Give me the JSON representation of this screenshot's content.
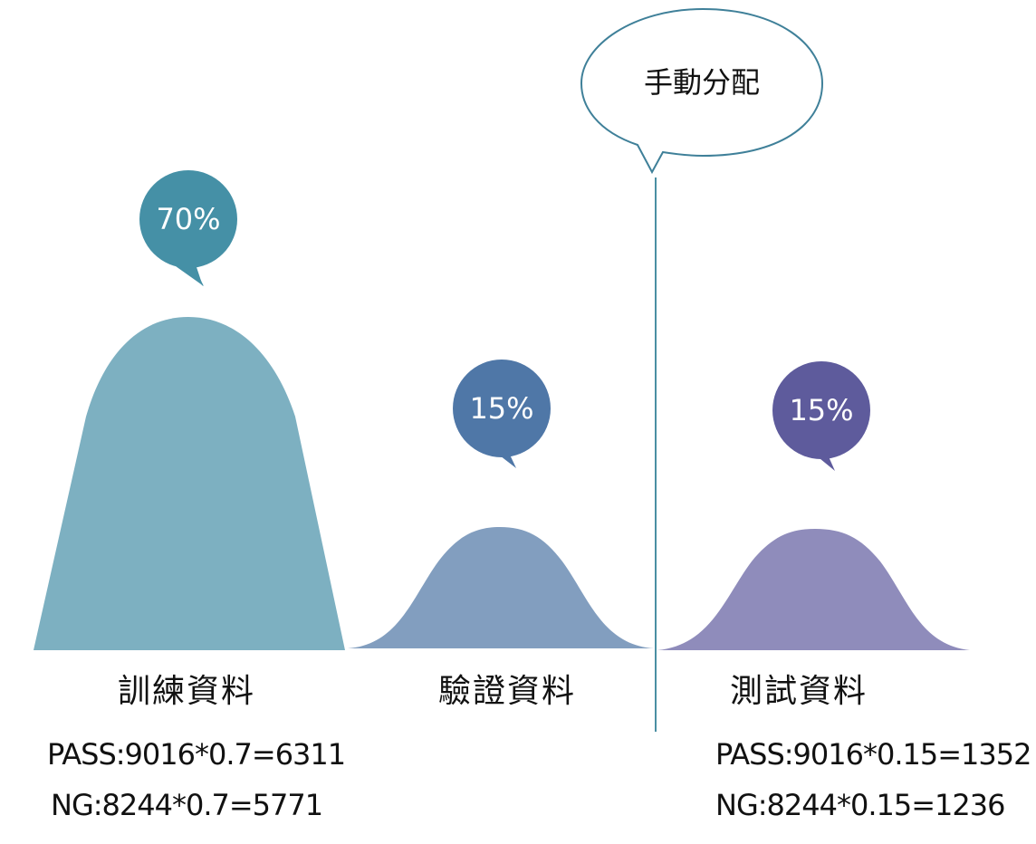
{
  "callout": {
    "text": "手動分配"
  },
  "groups": [
    {
      "id": "train",
      "percent": "70%",
      "label": "訓練資料",
      "fraction": 0.7,
      "bubble_color": "#4590a6",
      "shape_color": "#7db0c1"
    },
    {
      "id": "validation",
      "percent": "15%",
      "label": "驗證資料",
      "fraction": 0.15,
      "bubble_color": "#4f77a7",
      "shape_color": "#829ebf"
    },
    {
      "id": "test",
      "percent": "15%",
      "label": "測試資料",
      "fraction": 0.15,
      "bubble_color": "#5e5b9c",
      "shape_color": "#8f8cbb"
    }
  ],
  "formulas": {
    "train_pass": "PASS:9016*0.7=6311",
    "train_ng": "NG:8244*0.7=5771",
    "test_pass": "PASS:9016*0.15=1352",
    "test_ng": "NG:8244*0.15=1236"
  },
  "colors": {
    "divider": "#4a8fa3",
    "callout_stroke": "#3f8099"
  }
}
